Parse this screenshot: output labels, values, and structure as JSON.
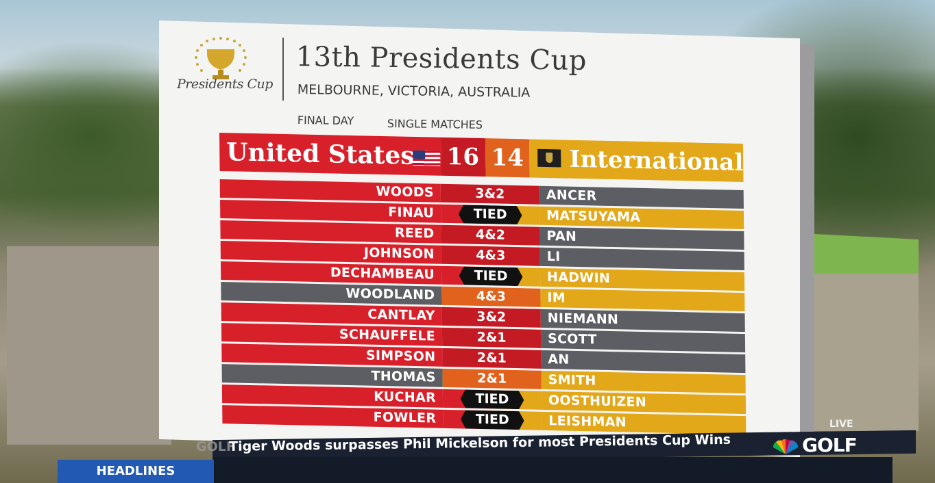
{
  "event": {
    "title": "13th Presidents Cup",
    "location": "MELBOURNE, VICTORIA, AUSTRALIA",
    "day": "FINAL DAY",
    "session": "SINGLE MATCHES",
    "logo_script": "Presidents Cup"
  },
  "teams": {
    "usa": {
      "name": "United States",
      "score": "16",
      "color": "#d8202a"
    },
    "intl": {
      "name": "International",
      "score": "14",
      "color": "#e3a81a"
    }
  },
  "matches": [
    {
      "usa": "WOODS",
      "result": "3&2",
      "intl": "ANCER",
      "winner": "usa"
    },
    {
      "usa": "FINAU",
      "result": "TIED",
      "intl": "MATSUYAMA",
      "winner": "tied"
    },
    {
      "usa": "REED",
      "result": "4&2",
      "intl": "PAN",
      "winner": "usa"
    },
    {
      "usa": "JOHNSON",
      "result": "4&3",
      "intl": "LI",
      "winner": "usa"
    },
    {
      "usa": "DECHAMBEAU",
      "result": "TIED",
      "intl": "HADWIN",
      "winner": "tied"
    },
    {
      "usa": "WOODLAND",
      "result": "4&3",
      "intl": "IM",
      "winner": "intl"
    },
    {
      "usa": "CANTLAY",
      "result": "3&2",
      "intl": "NIEMANN",
      "winner": "usa"
    },
    {
      "usa": "SCHAUFFELE",
      "result": "2&1",
      "intl": "SCOTT",
      "winner": "usa"
    },
    {
      "usa": "SIMPSON",
      "result": "2&1",
      "intl": "AN",
      "winner": "usa"
    },
    {
      "usa": "THOMAS",
      "result": "2&1",
      "intl": "SMITH",
      "winner": "intl"
    },
    {
      "usa": "KUCHAR",
      "result": "TIED",
      "intl": "OOSTHUIZEN",
      "winner": "tied"
    },
    {
      "usa": "FOWLER",
      "result": "TIED",
      "intl": "LEISHMAN",
      "winner": "tied"
    }
  ],
  "ticker": {
    "label": "HEADLINES",
    "text": "Tiger Woods surpasses Phil Mickelson for most Presidents Cup Wins",
    "watermark": "GOLF",
    "network": "GOLF",
    "live": "LIVE"
  },
  "icons": [
    "trophy-icon",
    "us-flag-icon",
    "international-shield-icon",
    "peacock-icon"
  ]
}
